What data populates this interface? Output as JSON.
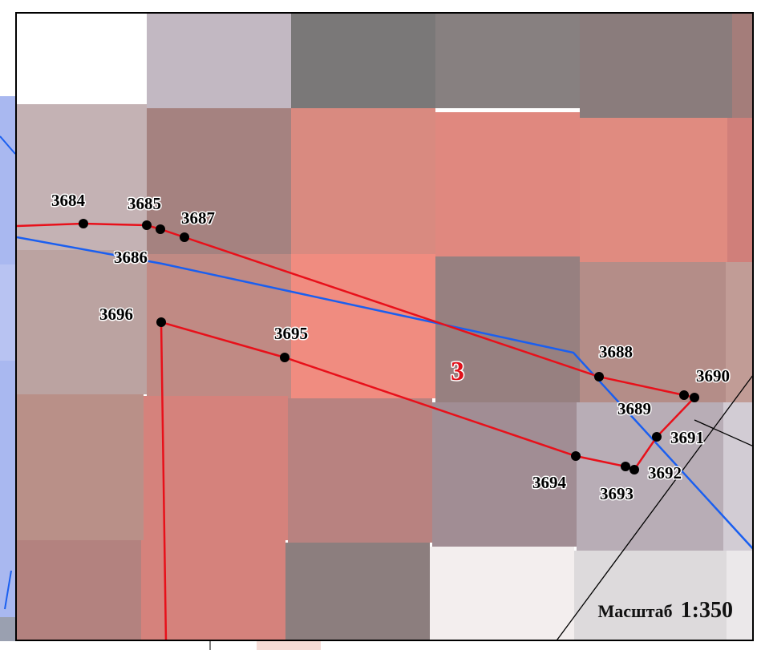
{
  "map": {
    "parcel_label": "3",
    "scale": {
      "label": "Масштаб",
      "value": "1:350"
    },
    "points": [
      {
        "id": "3684",
        "label": "3684"
      },
      {
        "id": "3685",
        "label": "3685"
      },
      {
        "id": "3686",
        "label": "3686"
      },
      {
        "id": "3687",
        "label": "3687"
      },
      {
        "id": "3688",
        "label": "3688"
      },
      {
        "id": "3689",
        "label": "3689"
      },
      {
        "id": "3690",
        "label": "3690"
      },
      {
        "id": "3691",
        "label": "3691"
      },
      {
        "id": "3692",
        "label": "3692"
      },
      {
        "id": "3693",
        "label": "3693"
      },
      {
        "id": "3694",
        "label": "3694"
      },
      {
        "id": "3695",
        "label": "3695"
      },
      {
        "id": "3696",
        "label": "3696"
      }
    ],
    "colors": {
      "parcel_boundary": "#e8101a",
      "blue_line": "#1a5ff0",
      "black_line": "#000000",
      "point_marker": "#000000"
    }
  }
}
